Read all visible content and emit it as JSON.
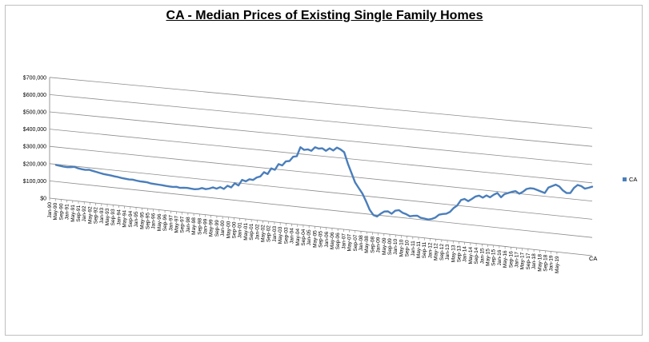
{
  "chart_data": {
    "type": "line",
    "title": "CA - Median Prices of Existing Single Family Homes",
    "xlabel": "",
    "ylabel": "",
    "ylim": [
      0,
      700000
    ],
    "y_ticks": [
      "$0",
      "$100,000",
      "$200,000",
      "$300,000",
      "$400,000",
      "$500,000",
      "$600,000",
      "$700,000"
    ],
    "x_tick_labels": [
      "Jan-90",
      "May-90",
      "Sep-90",
      "Jan-91",
      "May-91",
      "Sep-91",
      "Jan-92",
      "May-92",
      "Sep-92",
      "Jan-93",
      "May-93",
      "Sep-93",
      "Jan-94",
      "May-94",
      "Sep-94",
      "Jan-95",
      "May-95",
      "Sep-95",
      "Jan-96",
      "May-96",
      "Sep-96",
      "Jan-97",
      "May-97",
      "Sep-97",
      "Jan-98",
      "May-98",
      "Sep-98",
      "Jan-99",
      "May-99",
      "Sep-99",
      "Jan-00",
      "May-00",
      "Sep-00",
      "Jan-01",
      "May-01",
      "Sep-01",
      "Jan-02",
      "May-02",
      "Sep-02",
      "Jan-03",
      "May-03",
      "Sep-03",
      "Jan-04",
      "May-04",
      "Sep-04",
      "Jan-05",
      "May-05",
      "Sep-05",
      "Jan-06",
      "May-06",
      "Sep-06",
      "Jan-07",
      "May-07",
      "Sep-07",
      "Jan-08",
      "May-08",
      "Sep-08",
      "Jan-09",
      "May-09",
      "Sep-09",
      "Jan-10",
      "May-10",
      "Sep-10",
      "Jan-11",
      "May-11",
      "Sep-11",
      "Jan-12",
      "May-12",
      "Sep-12",
      "Jan-13",
      "May-13",
      "Sep-13",
      "Jan-14",
      "May-14",
      "Sep-14",
      "Jan-15",
      "May-15",
      "Sep-15",
      "Jan-16",
      "May-16",
      "Sep-16",
      "Jan-17",
      "May-17",
      "Sep-17",
      "Jan-18",
      "May-18",
      "Sep-18",
      "Jan-19",
      "May-19"
    ],
    "series": [
      {
        "name": "CA",
        "color": "#4a7ebb",
        "values": [
          196000,
          194000,
          191000,
          190000,
          192000,
          196000,
          190000,
          187000,
          185000,
          188000,
          184000,
          180000,
          176000,
          172000,
          170000,
          168000,
          165000,
          163000,
          160000,
          158000,
          156000,
          157000,
          154000,
          152000,
          151000,
          150000,
          146000,
          145000,
          144000,
          143000,
          141000,
          140000,
          139000,
          142000,
          138000,
          141000,
          142000,
          140000,
          139000,
          142000,
          150000,
          146000,
          151000,
          160000,
          155000,
          166000,
          158000,
          178000,
          171000,
          196000,
          186000,
          220000,
          214000,
          228000,
          226000,
          242000,
          250000,
          276000,
          268000,
          302000,
          296000,
          330000,
          325000,
          350000,
          354000,
          380000,
          385000,
          438000,
          425000,
          430000,
          424000,
          446000,
          440000,
          444000,
          432000,
          448000,
          438000,
          456000,
          448000,
          434000,
          372000,
          322000,
          270000,
          240000,
          212000,
          170000,
          125000,
          98000,
          92000,
          110000,
          124000,
          127000,
          116000,
          135000,
          140000,
          128000,
          122000,
          112000,
          117000,
          120000,
          110000,
          108000,
          105000,
          110000,
          120000,
          138000,
          144000,
          148000,
          160000,
          183000,
          200000,
          232000,
          240000,
          230000,
          244000,
          260000,
          267000,
          258000,
          272000,
          264000,
          280000,
          292000,
          270000,
          290000,
          298000,
          306000,
          312000,
          300000,
          312000,
          330000,
          336000,
          336000,
          330000,
          324000,
          318000,
          350000,
          360000,
          370000,
          362000,
          342000,
          330000,
          332000,
          362000,
          380000,
          376000,
          364000,
          371000,
          379000
        ]
      }
    ],
    "legend": "right",
    "grid": true
  }
}
